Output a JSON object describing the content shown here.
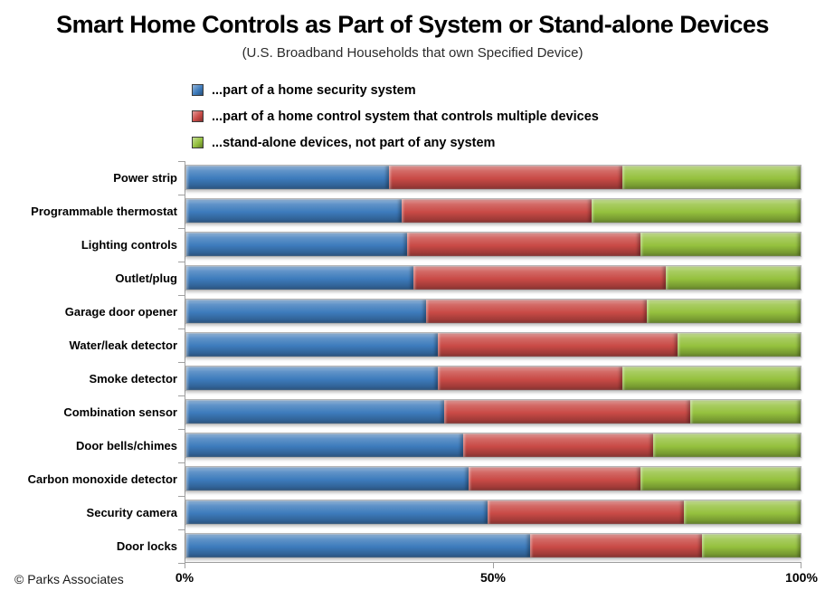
{
  "title": "Smart Home Controls as Part of System or Stand-alone Devices",
  "subtitle": "(U.S. Broadband Households that own Specified Device)",
  "footer": "© Parks Associates",
  "legend": {
    "items": [
      {
        "label": "...part of a home security system",
        "color": "#3D7BBC"
      },
      {
        "label": "...part of a home control system that controls multiple devices",
        "color": "#C94A46"
      },
      {
        "label": "...stand-alone devices, not part of any system",
        "color": "#95C13E"
      }
    ]
  },
  "x_axis": {
    "ticks": [
      "0%",
      "50%",
      "100%"
    ],
    "tick_positions_pct": [
      0,
      50,
      100
    ]
  },
  "chart_data": {
    "type": "bar",
    "orientation": "horizontal",
    "stacked": true,
    "title": "Smart Home Controls as Part of System or Stand-alone Devices",
    "subtitle": "(U.S. Broadband Households that own Specified Device)",
    "xlabel": "",
    "ylabel": "",
    "xlim": [
      0,
      100
    ],
    "grid": false,
    "legend_position": "top-left",
    "units": "percent",
    "categories": [
      "Power strip",
      "Programmable thermostat",
      "Lighting controls",
      "Outlet/plug",
      "Garage door opener",
      "Water/leak detector",
      "Smoke detector",
      "Combination sensor",
      "Door bells/chimes",
      "Carbon monoxide detector",
      "Security camera",
      "Door locks"
    ],
    "series": [
      {
        "key": "security",
        "name": "...part of a home security system",
        "color": "#3D7BBC",
        "values": [
          33,
          35,
          36,
          37,
          39,
          41,
          41,
          42,
          45,
          46,
          49,
          56
        ]
      },
      {
        "key": "control",
        "name": "...part of a home control system that controls multiple devices",
        "color": "#C94A46",
        "values": [
          38,
          31,
          38,
          41,
          36,
          39,
          30,
          40,
          31,
          28,
          32,
          28
        ]
      },
      {
        "key": "standalone",
        "name": "...stand-alone devices, not part of any system",
        "color": "#95C13E",
        "values": [
          29,
          34,
          26,
          22,
          25,
          20,
          29,
          18,
          24,
          26,
          19,
          16
        ]
      }
    ]
  }
}
